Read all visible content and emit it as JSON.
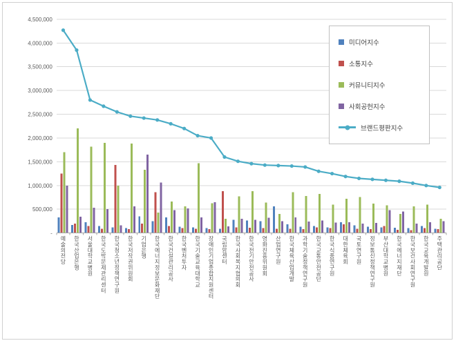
{
  "chart_data": {
    "type": "bar",
    "subtype": "grouped-bars-with-line-overlay",
    "categories": [
      "예술의전당",
      "한국산업은행",
      "서울대학교병원",
      "한국도박문제관리센터",
      "한국청소년정책연구원",
      "한국저작권위원회",
      "기업은행",
      "한국에너지정보문화재단",
      "한국건설관리공사",
      "한국벤처투자",
      "한국기술교육대학교",
      "장애인기업종합지원센터",
      "국립암센터",
      "한국사회복지협의회",
      "한국전기안전공사",
      "영화진흥위원회",
      "산업연구원",
      "한국체육산업개발",
      "과학기술정책연구원",
      "한국교통안전공단",
      "한국식품연구원",
      "대한체육회",
      "국토연구원",
      "정보통신정책연구원",
      "부산대학교병원",
      "한국에너지재단",
      "한국보건사회연구원",
      "한국교육개발원",
      "주택관리공단"
    ],
    "series": [
      {
        "name": "미디어지수",
        "type": "bar",
        "color": "#4F81BD",
        "values": [
          330000,
          170000,
          230000,
          150000,
          120000,
          100000,
          350000,
          250000,
          330000,
          130000,
          120000,
          100000,
          90000,
          280000,
          260000,
          250000,
          560000,
          180000,
          130000,
          150000,
          120000,
          230000,
          160000,
          130000,
          120000,
          110000,
          100000,
          150000,
          90000
        ]
      },
      {
        "name": "소통지수",
        "type": "bar",
        "color": "#C0504D",
        "values": [
          1250000,
          200000,
          150000,
          90000,
          1430000,
          80000,
          200000,
          860000,
          150000,
          100000,
          90000,
          80000,
          880000,
          120000,
          110000,
          100000,
          90000,
          90000,
          80000,
          120000,
          100000,
          180000,
          90000,
          80000,
          150000,
          70000,
          60000,
          100000,
          80000
        ]
      },
      {
        "name": "커뮤니티지수",
        "type": "bar",
        "color": "#9BBB59",
        "values": [
          1700000,
          2200000,
          1820000,
          1900000,
          1000000,
          1880000,
          1330000,
          430000,
          660000,
          560000,
          1470000,
          630000,
          300000,
          770000,
          880000,
          640000,
          400000,
          860000,
          780000,
          820000,
          600000,
          720000,
          760000,
          620000,
          580000,
          400000,
          560000,
          600000,
          300000
        ]
      },
      {
        "name": "사회공헌지수",
        "type": "bar",
        "color": "#8064A2",
        "values": [
          1000000,
          340000,
          530000,
          500000,
          160000,
          560000,
          1650000,
          1060000,
          480000,
          520000,
          330000,
          650000,
          140000,
          300000,
          280000,
          320000,
          250000,
          330000,
          240000,
          260000,
          220000,
          230000,
          200000,
          210000,
          480000,
          450000,
          200000,
          230000,
          250000
        ]
      },
      {
        "name": "브랜드평판지수",
        "type": "line",
        "color": "#4BACC6",
        "values": [
          4270000,
          3850000,
          2800000,
          2670000,
          2550000,
          2460000,
          2420000,
          2380000,
          2300000,
          2200000,
          2050000,
          2000000,
          1600000,
          1510000,
          1460000,
          1430000,
          1420000,
          1410000,
          1390000,
          1300000,
          1250000,
          1190000,
          1150000,
          1130000,
          1110000,
          1090000,
          1050000,
          1000000,
          960000
        ]
      }
    ],
    "ylim": [
      0,
      4500000
    ],
    "ytick_step": 500000,
    "ytick_labels": [
      "-",
      "500,000",
      "1,000,000",
      "1,500,000",
      "2,000,000",
      "2,500,000",
      "3,000,000",
      "3,500,000",
      "4,000,000",
      "4,500,000"
    ],
    "grid": true,
    "legend_position": "top-right"
  }
}
